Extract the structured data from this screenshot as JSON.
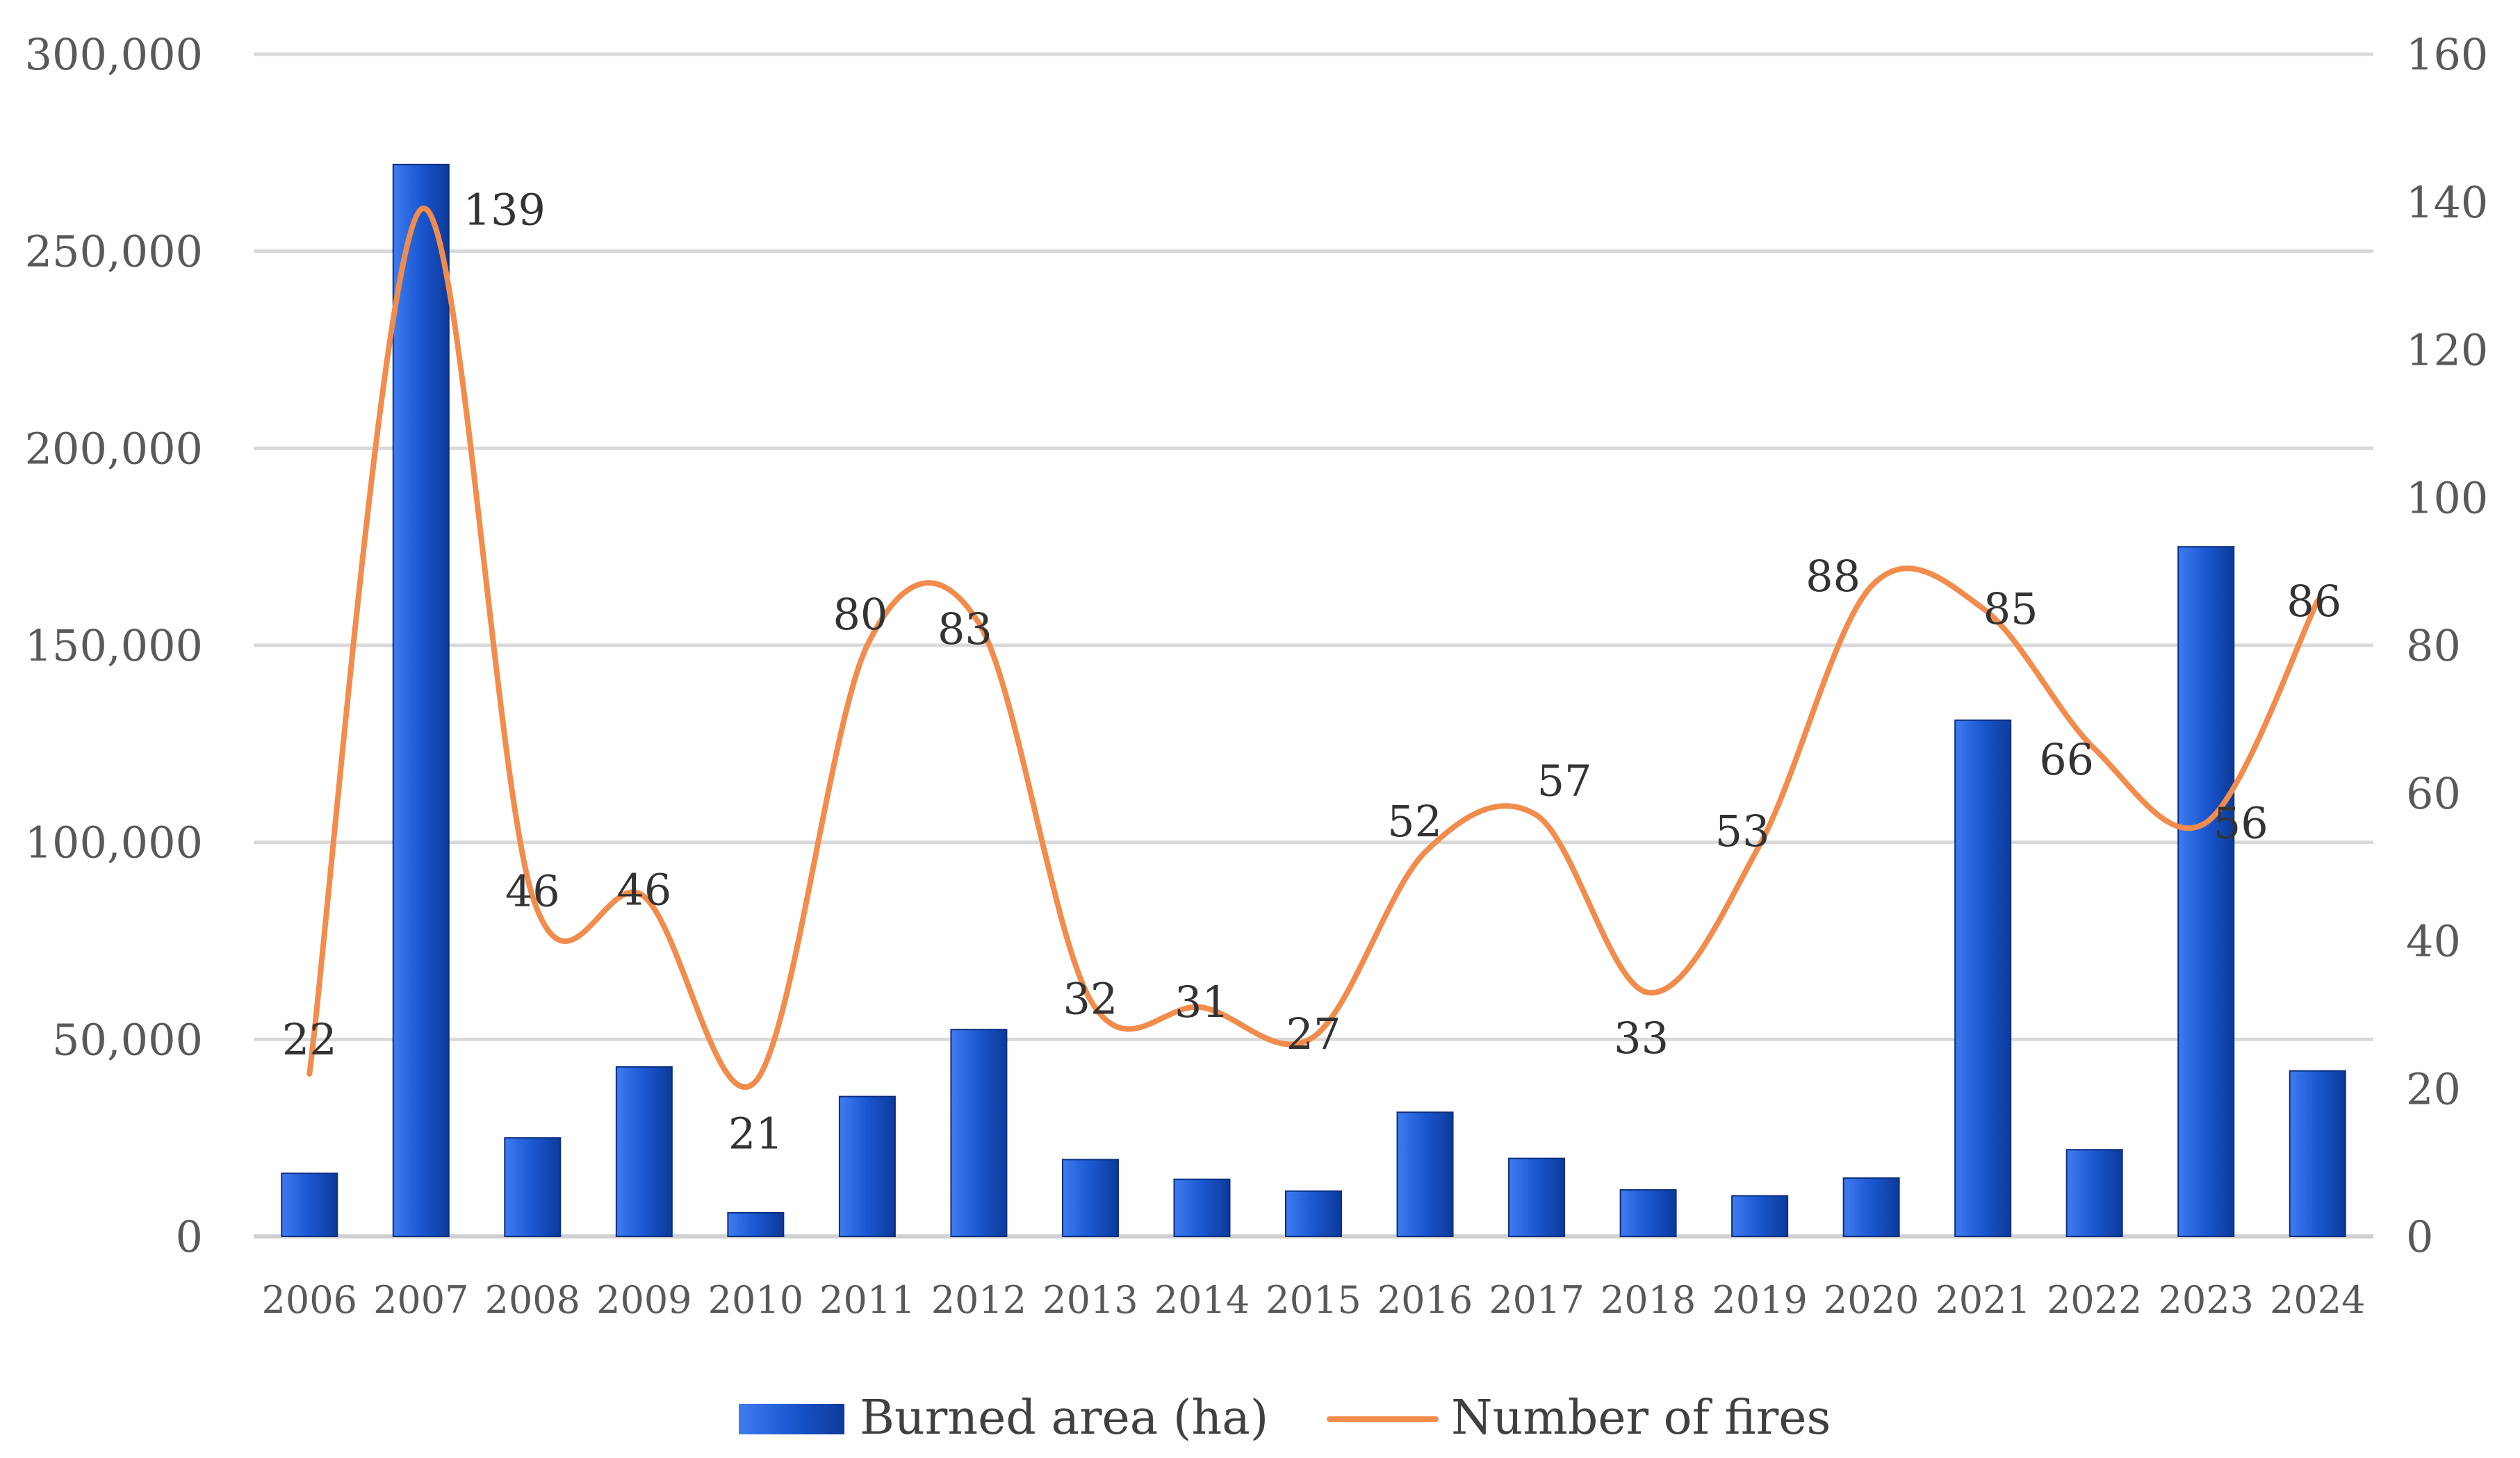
{
  "chart_data": {
    "type": "bar+line",
    "categories": [
      "2006",
      "2007",
      "2008",
      "2009",
      "2010",
      "2011",
      "2012",
      "2013",
      "2014",
      "2015",
      "2016",
      "2017",
      "2018",
      "2019",
      "2020",
      "2021",
      "2022",
      "2023",
      "2024"
    ],
    "series": [
      {
        "name": "Burned area (ha)",
        "type": "bar",
        "axis": "left",
        "color": "#1f5fd6",
        "values": [
          16000,
          272000,
          25000,
          43000,
          6000,
          35500,
          52500,
          19500,
          14500,
          11500,
          31500,
          19800,
          11800,
          10300,
          14800,
          131000,
          22000,
          175000,
          42000
        ]
      },
      {
        "name": "Number of fires",
        "type": "line",
        "axis": "right",
        "color": "#f28c4c",
        "values": [
          22,
          139,
          46,
          46,
          21,
          80,
          83,
          32,
          31,
          27,
          52,
          57,
          33,
          53,
          88,
          85,
          66,
          56,
          86
        ],
        "labels": [
          "22",
          "139",
          "46",
          "46",
          "21",
          "80",
          "83",
          "32",
          "31",
          "27",
          "52",
          "57",
          "33",
          "53",
          "88",
          "85",
          "66",
          "56",
          "86"
        ]
      }
    ],
    "left_axis": {
      "ylim": [
        0,
        300000
      ],
      "ticks": [
        0,
        50000,
        100000,
        150000,
        200000,
        250000,
        300000
      ],
      "tick_labels": [
        "0",
        "50,000",
        "100,000",
        "150,000",
        "200,000",
        "250,000",
        "300,000"
      ]
    },
    "right_axis": {
      "ylim": [
        0,
        160
      ],
      "ticks": [
        0,
        20,
        40,
        60,
        80,
        100,
        120,
        140,
        160
      ],
      "tick_labels": [
        "0",
        "20",
        "40",
        "60",
        "80",
        "100",
        "120",
        "140",
        "160"
      ]
    },
    "grid": true,
    "legend": {
      "position": "bottom-center",
      "entries": [
        "Burned area (ha)",
        "Number of fires"
      ]
    },
    "title": "",
    "xlabel": "",
    "ylabel": ""
  }
}
